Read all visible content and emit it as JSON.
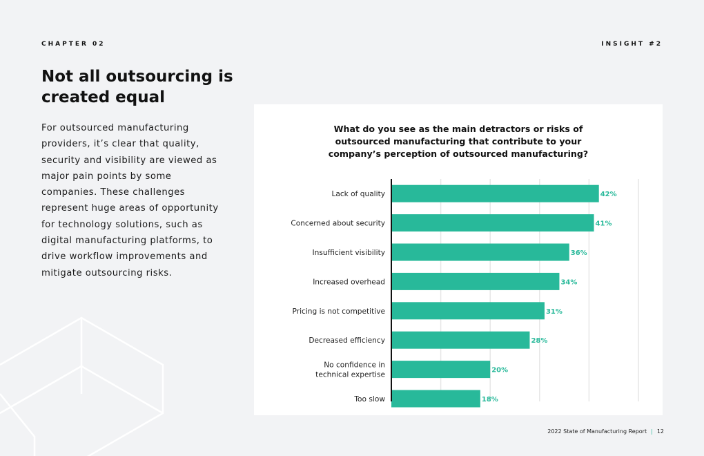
{
  "header": {
    "chapter": "CHAPTER 02",
    "insight": "INSIGHT #2"
  },
  "page": {
    "title": "Not all outsourcing is created equal",
    "body": "For outsourced manufacturing providers, it’s clear that quality, security and visibility are viewed as major pain points by some companies. These challenges represent huge areas of opportunity for technology solutions, such as digital manufacturing platforms, to drive workflow improvements and mitigate outsourcing risks."
  },
  "footer": {
    "report": "2022 State of Manufacturing Report",
    "page_number": "12"
  },
  "colors": {
    "accent": "#28b99a",
    "background": "#f2f3f5",
    "card": "#ffffff"
  },
  "chart_data": {
    "type": "bar",
    "orientation": "horizontal",
    "title": "What do you see as the main detractors or risks of outsourced manufacturing that contribute to your company’s perception of outsourced manufacturing?",
    "categories": [
      "Lack of quality",
      "Concerned about security",
      "Insufficient visibility",
      "Increased overhead",
      "Pricing is not competitive",
      "Decreased efficiency",
      "No confidence in technical expertise",
      "Too slow"
    ],
    "values": [
      42,
      41,
      36,
      34,
      31,
      28,
      20,
      18
    ],
    "value_labels": [
      "42%",
      "41%",
      "36%",
      "34%",
      "31%",
      "28%",
      "20%",
      "18%"
    ],
    "xlim": [
      0,
      50
    ],
    "grid": true,
    "xlabel": "",
    "ylabel": ""
  }
}
